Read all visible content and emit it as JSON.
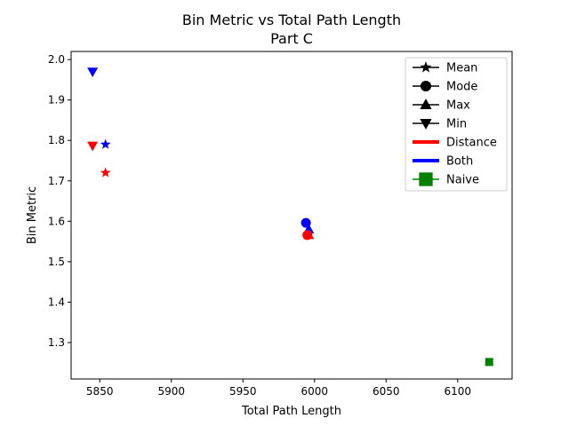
{
  "chart_data": {
    "type": "scatter",
    "title": "Bin Metric vs Total Path Length",
    "subtitle": "Part C",
    "xlabel": "Total Path Length",
    "ylabel": "Bin Metric",
    "xlim": [
      5830,
      6138
    ],
    "ylim": [
      1.21,
      2.02
    ],
    "xticks": [
      5850,
      5900,
      5950,
      6000,
      6050,
      6100
    ],
    "yticks": [
      1.3,
      1.4,
      1.5,
      1.6,
      1.7,
      1.8,
      1.9,
      2.0
    ],
    "grid": false,
    "legend_position": "top-right",
    "colors": {
      "Distance": "#ff0000",
      "Both": "#0000ff",
      "Naive": "#008000"
    },
    "legend": [
      {
        "label": "Mean",
        "kind": "marker",
        "marker": "star",
        "color": "#000000"
      },
      {
        "label": "Mode",
        "kind": "marker",
        "marker": "circle",
        "color": "#000000"
      },
      {
        "label": "Max",
        "kind": "marker",
        "marker": "triangle-up",
        "color": "#000000"
      },
      {
        "label": "Min",
        "kind": "marker",
        "marker": "triangle-down",
        "color": "#000000"
      },
      {
        "label": "Distance",
        "kind": "line",
        "color": "#ff0000"
      },
      {
        "label": "Both",
        "kind": "line",
        "color": "#0000ff"
      },
      {
        "label": "Naive",
        "kind": "marker",
        "marker": "square",
        "color": "#008000"
      }
    ],
    "points": [
      {
        "group": "Both",
        "stat": "Min",
        "marker": "triangle-down",
        "x": 5845,
        "y": 1.97
      },
      {
        "group": "Distance",
        "stat": "Min",
        "marker": "triangle-down",
        "x": 5845,
        "y": 1.787
      },
      {
        "group": "Both",
        "stat": "Mean",
        "marker": "star",
        "x": 5854,
        "y": 1.79
      },
      {
        "group": "Distance",
        "stat": "Mean",
        "marker": "star",
        "x": 5854,
        "y": 1.72
      },
      {
        "group": "Both",
        "stat": "Mode",
        "marker": "circle",
        "x": 5994,
        "y": 1.596
      },
      {
        "group": "Both",
        "stat": "Max",
        "marker": "triangle-up",
        "x": 5996,
        "y": 1.58
      },
      {
        "group": "Distance",
        "stat": "Mode",
        "marker": "circle",
        "x": 5995,
        "y": 1.566
      },
      {
        "group": "Distance",
        "stat": "Max",
        "marker": "triangle-up",
        "x": 5996,
        "y": 1.566
      },
      {
        "group": "Naive",
        "stat": "Naive",
        "marker": "square",
        "x": 6122,
        "y": 1.252
      }
    ]
  }
}
